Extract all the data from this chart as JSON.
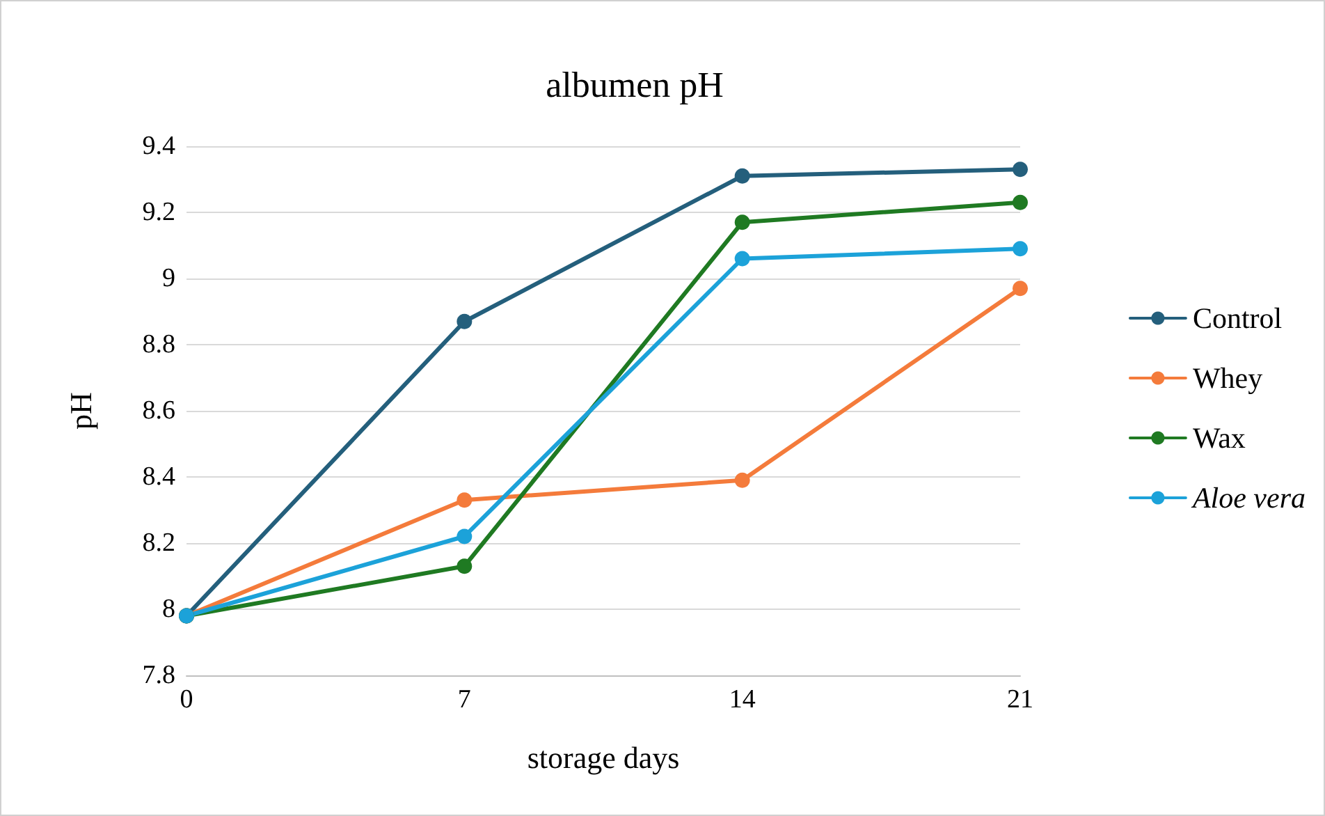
{
  "chart_data": {
    "type": "line",
    "title": "albumen pH",
    "xlabel": "storage days",
    "ylabel": "pH",
    "x": [
      0,
      7,
      14,
      21
    ],
    "xlim": [
      0,
      21
    ],
    "xticks": [
      0,
      7,
      14,
      21
    ],
    "ylim": [
      7.8,
      9.4
    ],
    "yticks": [
      7.8,
      8,
      8.2,
      8.4,
      8.6,
      8.8,
      9,
      9.2,
      9.4
    ],
    "series": [
      {
        "name": "Control",
        "color": "#245f7c",
        "values": [
          7.98,
          8.87,
          9.31,
          9.33
        ]
      },
      {
        "name": "Whey",
        "color": "#f47b3b",
        "values": [
          7.98,
          8.33,
          8.39,
          8.97
        ]
      },
      {
        "name": "Wax",
        "color": "#1f7a22",
        "values": [
          7.98,
          8.13,
          9.17,
          9.23
        ]
      },
      {
        "name": "Aloe vera",
        "color": "#1ca2d9",
        "values": [
          7.98,
          8.22,
          9.06,
          9.09
        ]
      }
    ],
    "grid": "y",
    "legend": "right",
    "marker": "circle",
    "line_style": "solid"
  }
}
